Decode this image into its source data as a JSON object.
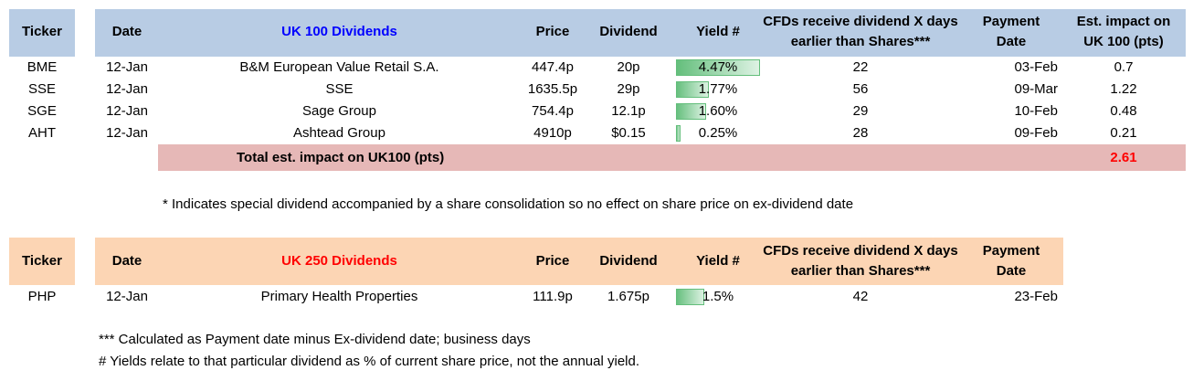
{
  "uk100": {
    "headers": {
      "ticker": "Ticker",
      "date": "Date",
      "title": "UK 100 Dividends",
      "price": "Price",
      "dividend": "Dividend",
      "yield": "Yield #",
      "cfd_line1": "CFDs receive dividend X days",
      "cfd_line2": "earlier than Shares***",
      "payment_line1": "Payment",
      "payment_line2": "Date",
      "impact_line1": "Est. impact on",
      "impact_line2": "UK 100 (pts)"
    },
    "title_color": "#0000ff",
    "rows": [
      {
        "ticker": "BME",
        "date": "12-Jan",
        "name": "B&M European Value Retail S.A.",
        "price": "447.4p",
        "dividend": "20p",
        "yield": "4.47%",
        "yield_value": 4.47,
        "cfd_days": "22",
        "payment": "03-Feb",
        "impact": "0.7"
      },
      {
        "ticker": "SSE",
        "date": "12-Jan",
        "name": "SSE",
        "price": "1635.5p",
        "dividend": "29p",
        "yield": "1.77%",
        "yield_value": 1.77,
        "cfd_days": "56",
        "payment": "09-Mar",
        "impact": "1.22"
      },
      {
        "ticker": "SGE",
        "date": "12-Jan",
        "name": "Sage Group",
        "price": "754.4p",
        "dividend": "12.1p",
        "yield": "1.60%",
        "yield_value": 1.6,
        "cfd_days": "29",
        "payment": "10-Feb",
        "impact": "0.48"
      },
      {
        "ticker": "AHT",
        "date": "12-Jan",
        "name": "Ashtead Group",
        "price": "4910p",
        "dividend": "$0.15",
        "yield": "0.25%",
        "yield_value": 0.25,
        "cfd_days": "28",
        "payment": "09-Feb",
        "impact": "0.21"
      }
    ],
    "total_label": "Total est. impact on UK100 (pts)",
    "total_value": "2.61",
    "total_color": "#ff0000"
  },
  "special_note": "* Indicates special dividend accompanied by a share consolidation so no effect on share price on ex-dividend date",
  "uk250": {
    "headers": {
      "ticker": "Ticker",
      "date": "Date",
      "title": "UK 250 Dividends",
      "price": "Price",
      "dividend": "Dividend",
      "yield": "Yield #",
      "cfd_line1": "CFDs receive dividend X days",
      "cfd_line2": "earlier than Shares***",
      "payment_line1": "Payment",
      "payment_line2": "Date"
    },
    "title_color": "#ff0000",
    "rows": [
      {
        "ticker": "PHP",
        "date": "12-Jan",
        "name": "Primary Health Properties",
        "price": "111.9p",
        "dividend": "1.675p",
        "yield": "1.5%",
        "yield_value": 1.5,
        "cfd_days": "42",
        "payment": "23-Feb"
      }
    ]
  },
  "footnotes": [
    "*** Calculated as Payment date minus Ex-dividend date; business days",
    "# Yields relate to that particular dividend as % of current share price, not the annual yield."
  ],
  "colors": {
    "header_blue": "#b8cce4",
    "header_peach": "#fcd5b4",
    "total_pink": "#e6b8b7",
    "databar_green": "#63be7b"
  },
  "yield_scale_max": 4.47
}
